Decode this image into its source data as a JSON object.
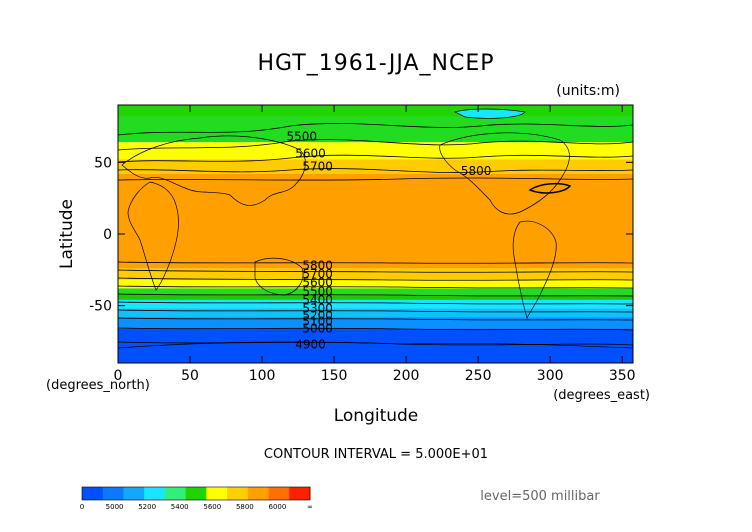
{
  "chart_data": {
    "type": "heatmap",
    "title": "HGT_1961-JJA_NCEP",
    "units": "(units:m)",
    "xlabel": "Longitude",
    "ylabel": "Latitude",
    "x_unit_label": "(degrees_east)",
    "y_unit_label": "(degrees_north)",
    "xlim": [
      0,
      357.5
    ],
    "ylim": [
      -90,
      90
    ],
    "x_ticks": [
      0,
      50,
      100,
      150,
      200,
      250,
      300,
      350
    ],
    "y_ticks": [
      50,
      0,
      -50
    ],
    "contour_interval_text": "CONTOUR INTERVAL = 5.000E+01",
    "level_text": "level=500 millibar",
    "colorbar": {
      "labels": [
        "0",
        "5000",
        "5200",
        "5400",
        "5600",
        "5800",
        "6000",
        "∞"
      ],
      "colors": [
        "#0050ff",
        "#0b78ff",
        "#11a8ff",
        "#18e6ff",
        "#2ef07a",
        "#1fd400",
        "#ffff00",
        "#ffd000",
        "#ffa000",
        "#ff7000",
        "#ff2000"
      ]
    },
    "bands": [
      {
        "from_lat": 90,
        "to_lat": 82,
        "color": "#22d400"
      },
      {
        "from_lat": 82,
        "to_lat": 64,
        "color": "#22dc22"
      },
      {
        "from_lat": 64,
        "to_lat": 52,
        "color": "#ffff00"
      },
      {
        "from_lat": 52,
        "to_lat": 42,
        "color": "#ffcc00"
      },
      {
        "from_lat": 42,
        "to_lat": -24,
        "color": "#ff9f00"
      },
      {
        "from_lat": -24,
        "to_lat": -32,
        "color": "#ffcc00"
      },
      {
        "from_lat": -32,
        "to_lat": -38,
        "color": "#ffff00"
      },
      {
        "from_lat": -38,
        "to_lat": -42,
        "color": "#22dc22"
      },
      {
        "from_lat": -42,
        "to_lat": -46,
        "color": "#1fc800"
      },
      {
        "from_lat": -46,
        "to_lat": -52,
        "color": "#18e6ff"
      },
      {
        "from_lat": -52,
        "to_lat": -58,
        "color": "#11c0ff"
      },
      {
        "from_lat": -58,
        "to_lat": -66,
        "color": "#0b90ff"
      },
      {
        "from_lat": -66,
        "to_lat": -90,
        "color": "#0050ff"
      }
    ],
    "contour_labels": [
      {
        "text": "5500",
        "lon": 117,
        "lat": 68
      },
      {
        "text": "5600",
        "lon": 123,
        "lat": 56
      },
      {
        "text": "5700",
        "lon": 128,
        "lat": 47
      },
      {
        "text": "5800",
        "lon": 238,
        "lat": 44
      },
      {
        "text": "5800",
        "lon": 128,
        "lat": -22
      },
      {
        "text": "5700",
        "lon": 128,
        "lat": -28
      },
      {
        "text": "5600",
        "lon": 128,
        "lat": -34
      },
      {
        "text": "5500",
        "lon": 128,
        "lat": -40
      },
      {
        "text": "5400",
        "lon": 128,
        "lat": -46
      },
      {
        "text": "5300",
        "lon": 128,
        "lat": -52
      },
      {
        "text": "5200",
        "lon": 128,
        "lat": -57
      },
      {
        "text": "5100",
        "lon": 128,
        "lat": -61
      },
      {
        "text": "5000",
        "lon": 128,
        "lat": -66
      },
      {
        "text": "4900",
        "lon": 123,
        "lat": -77
      }
    ]
  }
}
